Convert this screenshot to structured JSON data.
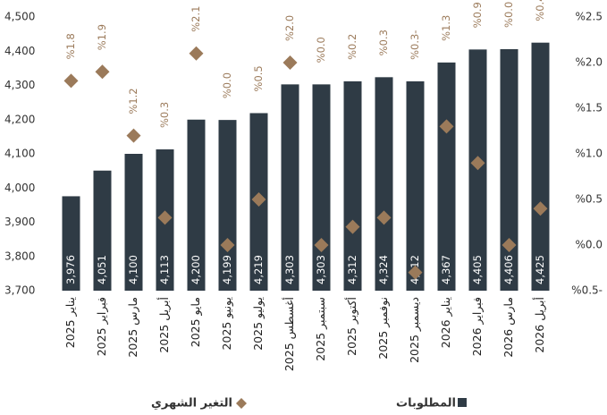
{
  "chart_data": {
    "type": "bar",
    "categories": [
      "يناير 2025",
      "فبراير 2025",
      "مارس 2025",
      "أبريل 2025",
      "مايو 2025",
      "يونيو 2025",
      "يوليو 2025",
      "أغسطس 2025",
      "سبتمبر 2025",
      "أكتوبر 2025",
      "نوفمبر 2025",
      "ديسمبر 2025",
      "يناير 2026",
      "فبراير 2026",
      "مارس 2026",
      "أبريل 2026"
    ],
    "series": [
      {
        "name": "المطلوبات",
        "color": "#2f3b45",
        "values": [
          3976,
          4051,
          4100,
          4113,
          4200,
          4199,
          4219,
          4303,
          4303,
          4312,
          4324,
          4312,
          4367,
          4405,
          4406,
          4425
        ],
        "value_labels": [
          "3,976",
          "4,051",
          "4,100",
          "4,113",
          "4,200",
          "4,199",
          "4,219",
          "4,303",
          "4,303",
          "4,312",
          "4,324",
          "4,312",
          "4,367",
          "4,405",
          "4,406",
          "4,425"
        ]
      },
      {
        "name": "التغير الشهري",
        "color": "#9b7a5a",
        "axis": "y2",
        "values": [
          1.8,
          1.9,
          1.2,
          0.3,
          2.1,
          0.0,
          0.5,
          2.0,
          0.0,
          0.2,
          0.3,
          -0.3,
          1.3,
          0.9,
          0.0,
          0.4
        ],
        "value_labels": [
          "%1.8",
          "%1.9",
          "%1.2",
          "%0.3",
          "%2.1",
          "%0.0",
          "%0.5",
          "%2.0",
          "%0.0",
          "%0.2",
          "%0.3",
          "%0.3-",
          "%1.3",
          "%0.9",
          "%0.0",
          "%0.4"
        ]
      }
    ],
    "ylim": [
      3700,
      4500
    ],
    "yticks": [
      {
        "value": 3700,
        "label": "3,700"
      },
      {
        "value": 3800,
        "label": "3,800"
      },
      {
        "value": 3900,
        "label": "3,900"
      },
      {
        "value": 4000,
        "label": "4,000"
      },
      {
        "value": 4100,
        "label": "4,100"
      },
      {
        "value": 4200,
        "label": "4,200"
      },
      {
        "value": 4300,
        "label": "4,300"
      },
      {
        "value": 4400,
        "label": "4,400"
      },
      {
        "value": 4500,
        "label": "4,500"
      }
    ],
    "y2lim": [
      -0.5,
      2.5
    ],
    "y2ticks": [
      {
        "value": -0.5,
        "label": "%0.5-"
      },
      {
        "value": 0.0,
        "label": "%0.0"
      },
      {
        "value": 0.5,
        "label": "%0.5"
      },
      {
        "value": 1.0,
        "label": "%1.0"
      },
      {
        "value": 1.5,
        "label": "%1.5"
      },
      {
        "value": 2.0,
        "label": "%2.0"
      },
      {
        "value": 2.5,
        "label": "%2.5"
      }
    ]
  }
}
